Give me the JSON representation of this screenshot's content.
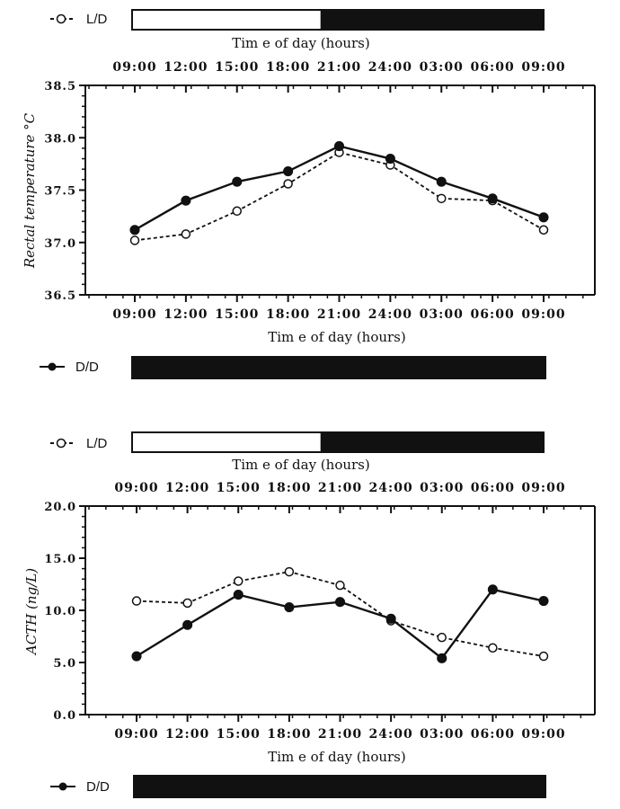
{
  "chart_data": [
    {
      "type": "line",
      "top_axis_label": "Tim e of day (hours)",
      "bottom_axis_label": "Tim e of day (hours)",
      "ylabel": "Rectal temperature °C",
      "categories": [
        "09:00",
        "12:00",
        "15:00",
        "18:00",
        "21:00",
        "24:00",
        "03:00",
        "06:00",
        "09:00"
      ],
      "ylim": [
        36.5,
        38.5
      ],
      "yticks": [
        "36.5",
        "37.0",
        "37.5",
        "38.0",
        "38.5"
      ],
      "grid": false,
      "series": [
        {
          "name": "L/D",
          "marker": "open-circle",
          "line": "dashed",
          "values": [
            37.02,
            37.08,
            37.3,
            37.56,
            37.86,
            37.74,
            37.42,
            37.4,
            37.12
          ]
        },
        {
          "name": "D/D",
          "marker": "filled-circle",
          "line": "solid",
          "values": [
            37.12,
            37.4,
            37.58,
            37.68,
            37.92,
            37.8,
            37.58,
            37.42,
            37.24
          ]
        }
      ],
      "light_dark_bar": {
        "light_fraction": 0.46
      },
      "dark_dark_bar": {
        "light_fraction": 0.0
      }
    },
    {
      "type": "line",
      "top_axis_label": "Tim e of day (hours)",
      "bottom_axis_label": "Tim e of day (hours)",
      "ylabel": "ACTH (ng/L)",
      "categories": [
        "09:00",
        "12:00",
        "15:00",
        "18:00",
        "21:00",
        "24:00",
        "03:00",
        "06:00",
        "09:00"
      ],
      "ylim": [
        0,
        20
      ],
      "yticks": [
        "0.0",
        "5.0",
        "10.0",
        "15.0",
        "20.0"
      ],
      "grid": false,
      "series": [
        {
          "name": "L/D",
          "marker": "open-circle",
          "line": "dashed",
          "values": [
            10.9,
            10.7,
            12.8,
            13.7,
            12.4,
            9.0,
            7.4,
            6.4,
            5.6
          ]
        },
        {
          "name": "D/D",
          "marker": "filled-circle",
          "line": "solid",
          "values": [
            5.6,
            8.6,
            11.5,
            10.3,
            10.8,
            9.2,
            5.4,
            12.0,
            10.9
          ]
        }
      ],
      "light_dark_bar": {
        "light_fraction": 0.46
      },
      "dark_dark_bar": {
        "light_fraction": 0.0
      }
    }
  ],
  "legend": {
    "ld_label": "L/D",
    "dd_label": "D/D"
  },
  "colors": {
    "ink": "#111111",
    "background": "#ffffff"
  }
}
